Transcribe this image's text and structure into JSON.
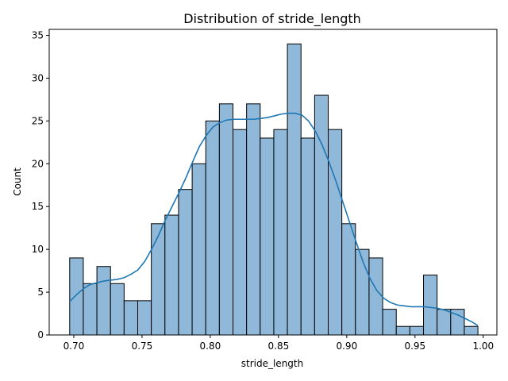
{
  "chart_data": {
    "type": "bar",
    "title": "Distribution of stride_length",
    "xlabel": "stride_length",
    "ylabel": "Count",
    "xlim": [
      0.682,
      1.01
    ],
    "ylim": [
      0,
      35.7
    ],
    "grid": false,
    "legend": "none",
    "bar_color": "#8fb8d9",
    "line_color": "#1f77b4",
    "x_ticks": [
      {
        "value": 0.7,
        "label": "0.70"
      },
      {
        "value": 0.75,
        "label": "0.75"
      },
      {
        "value": 0.8,
        "label": "0.80"
      },
      {
        "value": 0.85,
        "label": "0.85"
      },
      {
        "value": 0.9,
        "label": "0.90"
      },
      {
        "value": 0.95,
        "label": "0.95"
      },
      {
        "value": 1.0,
        "label": "1.00"
      }
    ],
    "y_ticks": [
      {
        "value": 0,
        "label": "0"
      },
      {
        "value": 5,
        "label": "5"
      },
      {
        "value": 10,
        "label": "10"
      },
      {
        "value": 15,
        "label": "15"
      },
      {
        "value": 20,
        "label": "20"
      },
      {
        "value": 25,
        "label": "25"
      },
      {
        "value": 30,
        "label": "30"
      },
      {
        "value": 35,
        "label": "35"
      }
    ],
    "bin_start": 0.697,
    "bin_width": 0.00997,
    "counts": [
      9,
      6,
      8,
      6,
      4,
      4,
      13,
      14,
      17,
      20,
      25,
      27,
      24,
      27,
      23,
      24,
      34,
      23,
      28,
      24,
      13,
      10,
      9,
      3,
      1,
      1,
      7,
      3,
      3,
      1
    ],
    "kde": {
      "x": [
        0.697,
        0.702,
        0.707,
        0.712,
        0.717,
        0.722,
        0.727,
        0.732,
        0.737,
        0.742,
        0.747,
        0.752,
        0.757,
        0.762,
        0.767,
        0.772,
        0.777,
        0.782,
        0.787,
        0.792,
        0.797,
        0.802,
        0.807,
        0.812,
        0.817,
        0.822,
        0.827,
        0.832,
        0.837,
        0.842,
        0.847,
        0.852,
        0.857,
        0.862,
        0.867,
        0.872,
        0.877,
        0.882,
        0.887,
        0.892,
        0.897,
        0.902,
        0.907,
        0.912,
        0.917,
        0.922,
        0.927,
        0.932,
        0.937,
        0.942,
        0.947,
        0.952,
        0.957,
        0.962,
        0.967,
        0.972,
        0.977,
        0.982,
        0.987,
        0.992,
        0.996
      ],
      "y": [
        3.9,
        4.7,
        5.4,
        5.9,
        6.1,
        6.3,
        6.4,
        6.5,
        6.7,
        7.1,
        7.6,
        8.6,
        10.0,
        11.6,
        13.4,
        15.0,
        16.6,
        18.3,
        20.2,
        22.0,
        23.3,
        24.3,
        24.8,
        25.1,
        25.2,
        25.2,
        25.2,
        25.2,
        25.3,
        25.4,
        25.6,
        25.8,
        25.9,
        25.9,
        25.7,
        25.0,
        23.8,
        22.2,
        20.2,
        18.0,
        15.6,
        13.2,
        10.8,
        8.5,
        6.6,
        5.2,
        4.3,
        3.8,
        3.5,
        3.4,
        3.3,
        3.3,
        3.3,
        3.2,
        3.1,
        2.9,
        2.6,
        2.3,
        1.9,
        1.5,
        1.1
      ]
    }
  }
}
